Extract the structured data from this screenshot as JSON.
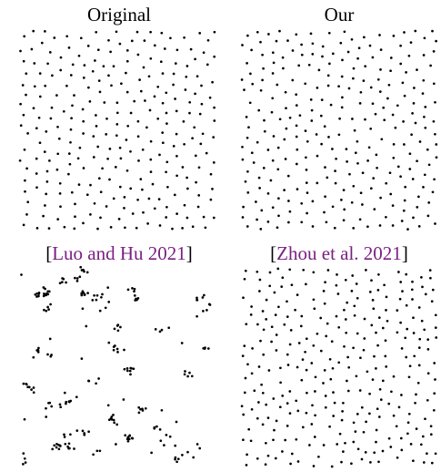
{
  "panels": {
    "original": {
      "title": "Original"
    },
    "ours": {
      "title": "Our"
    },
    "luo_hu": {
      "title": "[Luo and Hu 2021]",
      "cite_text": "Luo and Hu 2021"
    },
    "zhou": {
      "title": "[Zhou et al. 2021]",
      "cite_text": "Zhou et al. 2021"
    }
  },
  "colors": {
    "dots": "#000000",
    "citation": "#7a1f83"
  }
}
